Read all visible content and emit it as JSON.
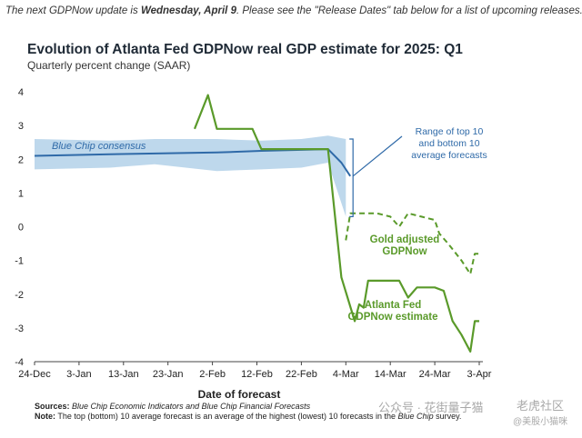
{
  "notice": {
    "prefix": "The next GDPNow update is ",
    "date": "Wednesday, April 9",
    "suffix": ". Please see the \"Release Dates\" tab below for a list of upcoming releases."
  },
  "footer": {
    "sources_label": "Sources:",
    "sources_text": "Blue Chip Economic Indicators and Blue Chip Financial Forecasts",
    "note_label": "Note:",
    "note_text_1": "The top (bottom) 10 average forecast is an average of the highest (lowest) 10 forecasts in the ",
    "note_italic": "Blue Chip",
    "note_text_2": " survey."
  },
  "watermark": {
    "wechat": "公众号 · 花街量子猫",
    "site": "老虎社区",
    "handle": "@美股小猫咪"
  },
  "colors": {
    "gdpnow": "#5a9a2a",
    "bluechip": "#2f6aa8",
    "range_fill": "#b7d4ea",
    "axis": "#444444",
    "grid": "#cccccc"
  },
  "chart_data": {
    "type": "line",
    "title": "Evolution of Atlanta Fed GDPNow real GDP estimate for 2025: Q1",
    "subtitle": "Quarterly percent change (SAAR)",
    "xlabel": "Date of forecast",
    "ylabel": "",
    "ylim": [
      -4,
      4
    ],
    "yticks": [
      4,
      3,
      2,
      1,
      0,
      -1,
      -2,
      -3,
      -4
    ],
    "xlim": [
      "2024-12-24",
      "2025-04-03"
    ],
    "xticks": [
      {
        "date": "2024-12-24",
        "label": "24-Dec"
      },
      {
        "date": "2025-01-03",
        "label": "3-Jan"
      },
      {
        "date": "2025-01-13",
        "label": "13-Jan"
      },
      {
        "date": "2025-01-23",
        "label": "23-Jan"
      },
      {
        "date": "2025-02-02",
        "label": "2-Feb"
      },
      {
        "date": "2025-02-12",
        "label": "12-Feb"
      },
      {
        "date": "2025-02-22",
        "label": "22-Feb"
      },
      {
        "date": "2025-03-04",
        "label": "4-Mar"
      },
      {
        "date": "2025-03-14",
        "label": "14-Mar"
      },
      {
        "date": "2025-03-24",
        "label": "24-Mar"
      },
      {
        "date": "2025-04-03",
        "label": "3-Apr"
      }
    ],
    "grid": false,
    "series": [
      {
        "name": "Blue Chip consensus",
        "style": "solid",
        "x": [
          "2024-12-24",
          "2025-01-10",
          "2025-02-03",
          "2025-02-13",
          "2025-02-28",
          "2025-03-03",
          "2025-03-05"
        ],
        "y": [
          2.1,
          2.15,
          2.2,
          2.25,
          2.3,
          1.9,
          1.5
        ]
      },
      {
        "name": "Range of top 10 and bottom 10 average forecasts",
        "style": "band",
        "x": [
          "2024-12-24",
          "2025-01-10",
          "2025-01-20",
          "2025-02-03",
          "2025-02-13",
          "2025-02-22",
          "2025-02-28",
          "2025-03-04"
        ],
        "upper": [
          2.6,
          2.55,
          2.6,
          2.6,
          2.55,
          2.6,
          2.7,
          2.6
        ],
        "lower": [
          1.7,
          1.75,
          1.85,
          1.65,
          1.7,
          1.75,
          1.9,
          0.3
        ]
      },
      {
        "name": "Atlanta Fed GDPNow estimate",
        "style": "solid",
        "x": [
          "2025-01-29",
          "2025-02-01",
          "2025-02-03",
          "2025-02-07",
          "2025-02-11",
          "2025-02-13",
          "2025-02-19",
          "2025-02-28",
          "2025-03-03",
          "2025-03-06",
          "2025-03-07",
          "2025-03-08",
          "2025-03-09",
          "2025-03-16",
          "2025-03-18",
          "2025-03-20",
          "2025-03-24",
          "2025-03-26",
          "2025-03-28",
          "2025-03-30",
          "2025-04-01",
          "2025-04-02",
          "2025-04-03"
        ],
        "y": [
          2.9,
          3.9,
          2.9,
          2.9,
          2.9,
          2.3,
          2.3,
          2.3,
          -1.5,
          -2.8,
          -2.3,
          -2.4,
          -1.6,
          -1.6,
          -2.1,
          -1.8,
          -1.8,
          -1.9,
          -2.8,
          -3.2,
          -3.7,
          -2.8,
          -2.8
        ]
      },
      {
        "name": "Gold adjusted GDPNow",
        "style": "dashed",
        "x": [
          "2025-03-04",
          "2025-03-05",
          "2025-03-11",
          "2025-03-14",
          "2025-03-16",
          "2025-03-18",
          "2025-03-21",
          "2025-03-24",
          "2025-03-25",
          "2025-03-27",
          "2025-03-30",
          "2025-04-01",
          "2025-04-02",
          "2025-04-03"
        ],
        "y": [
          -0.4,
          0.4,
          0.4,
          0.3,
          0.0,
          0.4,
          0.3,
          0.2,
          -0.2,
          -0.5,
          -1.0,
          -1.4,
          -0.8,
          -0.8
        ]
      }
    ],
    "annotations": {
      "bluechip_label": "Blue Chip consensus",
      "range_label": [
        "Range of top 10",
        "and bottom 10",
        "average forecasts"
      ],
      "gold_label": [
        "Gold adjusted",
        "GDPNow"
      ],
      "gdpnow_label": [
        "Atlanta Fed",
        "GDPNow estimate"
      ]
    }
  }
}
